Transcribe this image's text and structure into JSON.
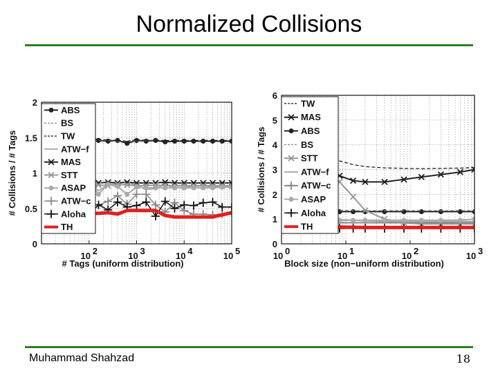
{
  "slide": {
    "title": "Normalized Collisions",
    "footer_author": "Muhammad Shahzad",
    "page_number": "18",
    "rule_color": "#2e7d22"
  },
  "chart_data": [
    {
      "type": "line",
      "xscale": "log",
      "xlim": [
        10,
        100000
      ],
      "ylim": [
        0,
        2
      ],
      "xticks": [
        {
          "v": 100,
          "label": "10",
          "sup": "2"
        },
        {
          "v": 1000,
          "label": "10",
          "sup": "3"
        },
        {
          "v": 10000,
          "label": "10",
          "sup": "4"
        },
        {
          "v": 100000,
          "label": "10",
          "sup": "5"
        }
      ],
      "yticks": [
        0,
        0.5,
        1,
        1.5,
        2
      ],
      "xlabel": "# Tags (uniform distribution)",
      "ylabel": "# Collisions / # Tags",
      "grid": true,
      "legend_position": "left",
      "legend": [
        "ABS",
        "BS",
        "TW",
        "ATW−f",
        "MAS",
        "STT",
        "ASAP",
        "ATW−c",
        "Aloha",
        "TH"
      ],
      "series": [
        {
          "name": "ABS",
          "color": "#222222",
          "width": 2,
          "dash": "",
          "marker": "dot",
          "x": [
            100,
            158,
            251,
            398,
            631,
            1000,
            1585,
            2512,
            3981,
            6310,
            10000,
            15849,
            25119,
            39811,
            63096,
            100000
          ],
          "y": [
            1.52,
            1.46,
            1.45,
            1.46,
            1.42,
            1.46,
            1.45,
            1.46,
            1.44,
            1.45,
            1.45,
            1.45,
            1.45,
            1.45,
            1.45,
            1.45
          ]
        },
        {
          "name": "BS",
          "color": "#777777",
          "width": 1.2,
          "dash": "4,3",
          "marker": "none",
          "x": [
            100,
            158,
            251,
            398,
            631,
            1000,
            2512,
            6310,
            15849,
            39811,
            100000
          ],
          "y": [
            1.47,
            1.46,
            1.46,
            1.45,
            1.45,
            1.45,
            1.46,
            1.46,
            1.46,
            1.46,
            1.46
          ]
        },
        {
          "name": "TW",
          "color": "#111111",
          "width": 1.2,
          "dash": "4,3",
          "marker": "none",
          "x": [
            100,
            158,
            251,
            398,
            631,
            1000,
            2512,
            6310,
            15849,
            39811,
            100000
          ],
          "y": [
            1.49,
            1.47,
            1.47,
            1.46,
            1.45,
            1.47,
            1.46,
            1.46,
            1.46,
            1.46,
            1.46
          ]
        },
        {
          "name": "ATW−f",
          "color": "#aaaaaa",
          "width": 2,
          "dash": "",
          "marker": "none",
          "x": [
            100,
            158,
            251,
            398,
            631,
            1000,
            1585,
            2512,
            3981,
            6310,
            10000,
            15849,
            25119,
            39811,
            63096,
            100000
          ],
          "y": [
            0.86,
            0.75,
            0.83,
            0.85,
            0.88,
            0.82,
            0.77,
            0.78,
            0.84,
            0.79,
            0.8,
            0.81,
            0.82,
            0.8,
            0.81,
            0.82
          ]
        },
        {
          "name": "MAS",
          "color": "#222222",
          "width": 2,
          "dash": "",
          "marker": "x",
          "x": [
            100,
            158,
            251,
            398,
            631,
            1000,
            1585,
            2512,
            3981,
            6310,
            10000,
            15849,
            25119,
            39811,
            63096,
            100000
          ],
          "y": [
            0.88,
            0.86,
            0.87,
            0.86,
            0.87,
            0.86,
            0.86,
            0.86,
            0.87,
            0.86,
            0.86,
            0.86,
            0.86,
            0.86,
            0.86,
            0.86
          ]
        },
        {
          "name": "STT",
          "color": "#999999",
          "width": 2,
          "dash": "",
          "marker": "x",
          "x": [
            100,
            158,
            251,
            398,
            631,
            1000,
            1585,
            2512,
            3981,
            6310,
            10000,
            15849,
            25119,
            39811,
            63096,
            100000
          ],
          "y": [
            0.85,
            0.83,
            0.82,
            0.84,
            0.83,
            0.82,
            0.82,
            0.83,
            0.82,
            0.82,
            0.82,
            0.82,
            0.82,
            0.82,
            0.82,
            0.82
          ]
        },
        {
          "name": "ASAP",
          "color": "#aaaaaa",
          "width": 2,
          "dash": "",
          "marker": "dot",
          "x": [
            100,
            158,
            251,
            398,
            631,
            1000,
            1585,
            2512,
            3981,
            6310,
            10000,
            15849,
            25119,
            39811,
            63096,
            100000
          ],
          "y": [
            0.88,
            0.7,
            0.84,
            0.81,
            0.7,
            0.8,
            0.79,
            0.79,
            0.79,
            0.79,
            0.79,
            0.79,
            0.79,
            0.79,
            0.8,
            0.8
          ]
        },
        {
          "name": "ATW−c",
          "color": "#888888",
          "width": 1.5,
          "dash": "",
          "marker": "plus",
          "x": [
            100,
            158,
            251,
            398,
            631,
            1000,
            1585,
            2512,
            3981,
            6310,
            10000,
            15849,
            25119,
            39811,
            63096,
            100000
          ],
          "y": [
            0.57,
            0.55,
            0.6,
            0.68,
            0.56,
            0.7,
            0.7,
            0.55,
            0.45,
            0.58,
            0.47,
            0.42,
            0.42,
            0.41,
            0.42,
            0.44
          ]
        },
        {
          "name": "Aloha",
          "color": "#111111",
          "width": 1.5,
          "dash": "",
          "marker": "plus",
          "x": [
            100,
            158,
            251,
            398,
            631,
            1000,
            1585,
            2512,
            3981,
            6310,
            10000,
            15849,
            25119,
            39811,
            63096,
            100000
          ],
          "y": [
            0.41,
            0.55,
            0.48,
            0.59,
            0.52,
            0.54,
            0.59,
            0.39,
            0.6,
            0.5,
            0.55,
            0.54,
            0.58,
            0.59,
            0.52,
            0.52
          ]
        },
        {
          "name": "TH",
          "color": "#e02020",
          "width": 5,
          "dash": "",
          "marker": "none",
          "x": [
            100,
            158,
            251,
            398,
            631,
            1000,
            1585,
            2512,
            3981,
            6310,
            10000,
            15849,
            25119,
            39811,
            63096,
            100000
          ],
          "y": [
            0.43,
            0.43,
            0.44,
            0.42,
            0.47,
            0.47,
            0.47,
            0.47,
            0.4,
            0.38,
            0.38,
            0.38,
            0.38,
            0.38,
            0.41,
            0.44
          ]
        }
      ]
    },
    {
      "type": "line",
      "xscale": "log",
      "xlim": [
        1,
        1000
      ],
      "ylim": [
        0,
        6
      ],
      "xticks": [
        {
          "v": 1,
          "label": "10",
          "sup": "0"
        },
        {
          "v": 10,
          "label": "10",
          "sup": "1"
        },
        {
          "v": 100,
          "label": "10",
          "sup": "2"
        },
        {
          "v": 1000,
          "label": "10",
          "sup": "3"
        }
      ],
      "yticks": [
        0,
        1,
        2,
        3,
        4,
        5,
        6
      ],
      "xlabel": "Block size (non−uniform distribution)",
      "ylabel": "# Collisions / # Tags",
      "grid": true,
      "legend_position": "left",
      "legend": [
        "TW",
        "MAS",
        "ABS",
        "BS",
        "STT",
        "ATW−f",
        "ATW−c",
        "ASAP",
        "Aloha",
        "TH"
      ],
      "series": [
        {
          "name": "TW",
          "color": "#111111",
          "width": 1.2,
          "dash": "5,3",
          "marker": "none",
          "x": [
            2,
            3,
            5,
            8,
            13,
            20,
            40,
            80,
            150,
            300,
            600,
            1000
          ],
          "y": [
            5.2,
            4.3,
            3.7,
            3.35,
            3.2,
            3.12,
            3.07,
            3.05,
            3.04,
            3.05,
            3.06,
            3.08
          ]
        },
        {
          "name": "MAS",
          "color": "#222222",
          "width": 2,
          "dash": "",
          "marker": "x",
          "x": [
            2,
            3,
            5,
            8,
            13,
            20,
            40,
            80,
            150,
            300,
            600,
            1000
          ],
          "y": [
            4.1,
            3.35,
            3.0,
            2.75,
            2.55,
            2.5,
            2.5,
            2.6,
            2.7,
            2.8,
            2.9,
            3.0
          ]
        },
        {
          "name": "ABS",
          "color": "#222222",
          "width": 2,
          "dash": "",
          "marker": "dot",
          "x": [
            2,
            3,
            5,
            8,
            13,
            20,
            40,
            80,
            150,
            300,
            600,
            1000
          ],
          "y": [
            1.3,
            1.3,
            1.3,
            1.3,
            1.3,
            1.3,
            1.3,
            1.3,
            1.3,
            1.3,
            1.3,
            1.3
          ]
        },
        {
          "name": "BS",
          "color": "#777777",
          "width": 1.2,
          "dash": "5,3",
          "marker": "none",
          "x": [
            2,
            5,
            13,
            40,
            150,
            600,
            1000
          ],
          "y": [
            1.35,
            1.35,
            1.34,
            1.34,
            1.34,
            1.34,
            1.34
          ]
        },
        {
          "name": "STT",
          "color": "#999999",
          "width": 2,
          "dash": "",
          "marker": "x",
          "x": [
            2,
            3,
            5,
            8,
            13,
            20,
            40,
            80,
            150,
            300,
            600,
            1000
          ],
          "y": [
            4.8,
            4.0,
            3.2,
            2.5,
            1.9,
            1.35,
            1.0,
            0.85,
            0.8,
            0.8,
            0.8,
            0.8
          ]
        },
        {
          "name": "ATW−f",
          "color": "#aaaaaa",
          "width": 2,
          "dash": "",
          "marker": "none",
          "x": [
            2,
            5,
            13,
            40,
            150,
            600,
            1000
          ],
          "y": [
            1.0,
            1.0,
            0.95,
            0.9,
            0.9,
            0.9,
            0.9
          ]
        },
        {
          "name": "ATW−c",
          "color": "#888888",
          "width": 2,
          "dash": "",
          "marker": "plus",
          "x": [
            2,
            3,
            5,
            8,
            13,
            20,
            40,
            80,
            150,
            300,
            600,
            1000
          ],
          "y": [
            0.85,
            0.85,
            0.85,
            0.85,
            0.85,
            0.85,
            0.85,
            0.85,
            0.85,
            0.85,
            0.85,
            0.85
          ]
        },
        {
          "name": "ASAP",
          "color": "#aaaaaa",
          "width": 2,
          "dash": "",
          "marker": "dot",
          "x": [
            2,
            3,
            5,
            8,
            13,
            20,
            40,
            80,
            150,
            300,
            600,
            1000
          ],
          "y": [
            1.0,
            0.95,
            0.95,
            0.95,
            0.95,
            0.95,
            0.95,
            0.95,
            0.95,
            0.95,
            0.95,
            1.0
          ]
        },
        {
          "name": "Aloha",
          "color": "#111111",
          "width": 1.5,
          "dash": "",
          "marker": "plus",
          "x": [
            2,
            3,
            5,
            8,
            13,
            20,
            40,
            80,
            150,
            300,
            600,
            1000
          ],
          "y": [
            0.62,
            0.62,
            0.62,
            0.62,
            0.62,
            0.62,
            0.62,
            0.62,
            0.62,
            0.62,
            0.62,
            0.62
          ]
        },
        {
          "name": "TH",
          "color": "#e02020",
          "width": 5,
          "dash": "",
          "marker": "none",
          "x": [
            2,
            3,
            5,
            8,
            13,
            20,
            40,
            80,
            150,
            300,
            600,
            1000
          ],
          "y": [
            0.75,
            0.72,
            0.7,
            0.68,
            0.67,
            0.66,
            0.66,
            0.66,
            0.66,
            0.66,
            0.66,
            0.66
          ]
        }
      ]
    }
  ]
}
